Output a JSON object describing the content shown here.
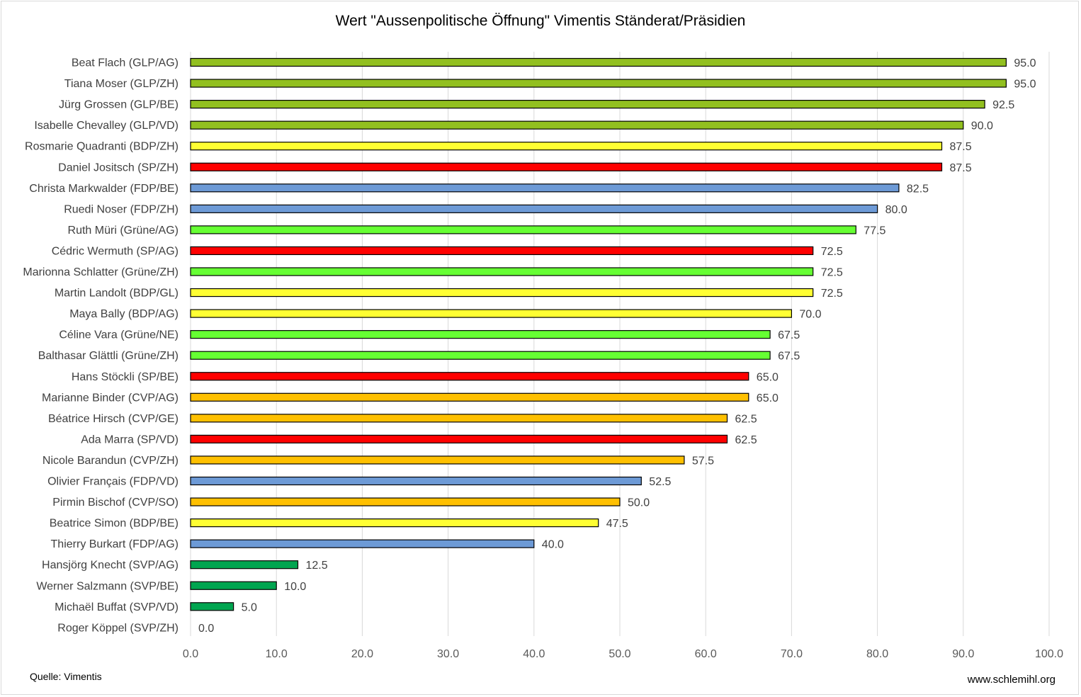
{
  "title": "Wert \"Aussenpolitische Öffnung\" Vimentis Ständerat/Präsidien",
  "source": "Quelle: Vimentis",
  "website": "www.schlemihl.org",
  "party_colors": {
    "GLP": "#92c020",
    "BDP": "#ffff33",
    "SP": "#ff0000",
    "FDP": "#6d9ad6",
    "Grüne": "#66ff33",
    "CVP": "#ffc000",
    "SVP": "#00a550"
  },
  "chart_data": {
    "type": "bar",
    "orientation": "horizontal",
    "title": "Wert \"Aussenpolitische Öffnung\" Vimentis Ständerat/Präsidien",
    "xlim": [
      0,
      100
    ],
    "ticks": [
      0,
      10,
      20,
      30,
      40,
      50,
      60,
      70,
      80,
      90,
      100
    ],
    "tick_labels": [
      "0.0",
      "10.0",
      "20.0",
      "30.0",
      "40.0",
      "50.0",
      "60.0",
      "70.0",
      "80.0",
      "90.0",
      "100.0"
    ],
    "grid": true,
    "categories": [
      "Beat Flach (GLP/AG)",
      "Tiana Moser (GLP/ZH)",
      "Jürg Grossen (GLP/BE)",
      "Isabelle Chevalley (GLP/VD)",
      "Rosmarie Quadranti (BDP/ZH)",
      "Daniel Jositsch (SP/ZH)",
      "Christa Markwalder (FDP/BE)",
      "Ruedi Noser (FDP/ZH)",
      "Ruth Müri (Grüne/AG)",
      "Cédric Wermuth (SP/AG)",
      "Marionna Schlatter (Grüne/ZH)",
      "Martin Landolt (BDP/GL)",
      "Maya Bally (BDP/AG)",
      "Céline Vara (Grüne/NE)",
      "Balthasar Glättli (Grüne/ZH)",
      "Hans Stöckli (SP/BE)",
      "Marianne Binder (CVP/AG)",
      "Béatrice Hirsch (CVP/GE)",
      "Ada Marra (SP/VD)",
      "Nicole Barandun (CVP/ZH)",
      "Olivier Français (FDP/VD)",
      "Pirmin Bischof (CVP/SO)",
      "Beatrice Simon (BDP/BE)",
      "Thierry Burkart (FDP/AG)",
      "Hansjörg Knecht (SVP/AG)",
      "Werner Salzmann (SVP/BE)",
      "Michaël Buffat (SVP/VD)",
      "Roger Köppel (SVP/ZH)"
    ],
    "values": [
      95.0,
      95.0,
      92.5,
      90.0,
      87.5,
      87.5,
      82.5,
      80.0,
      77.5,
      72.5,
      72.5,
      72.5,
      70.0,
      67.5,
      67.5,
      65.0,
      65.0,
      62.5,
      62.5,
      57.5,
      52.5,
      50.0,
      47.5,
      40.0,
      12.5,
      10.0,
      5.0,
      0.0
    ],
    "value_labels": [
      "95.0",
      "95.0",
      "92.5",
      "90.0",
      "87.5",
      "87.5",
      "82.5",
      "80.0",
      "77.5",
      "72.5",
      "72.5",
      "72.5",
      "70.0",
      "67.5",
      "67.5",
      "65.0",
      "65.0",
      "62.5",
      "62.5",
      "57.5",
      "52.5",
      "50.0",
      "47.5",
      "40.0",
      "12.5",
      "10.0",
      "5.0",
      "0.0"
    ],
    "parties": [
      "GLP",
      "GLP",
      "GLP",
      "GLP",
      "BDP",
      "SP",
      "FDP",
      "FDP",
      "Grüne",
      "SP",
      "Grüne",
      "BDP",
      "BDP",
      "Grüne",
      "Grüne",
      "SP",
      "CVP",
      "CVP",
      "SP",
      "CVP",
      "FDP",
      "CVP",
      "BDP",
      "FDP",
      "SVP",
      "SVP",
      "SVP",
      "SVP"
    ]
  }
}
